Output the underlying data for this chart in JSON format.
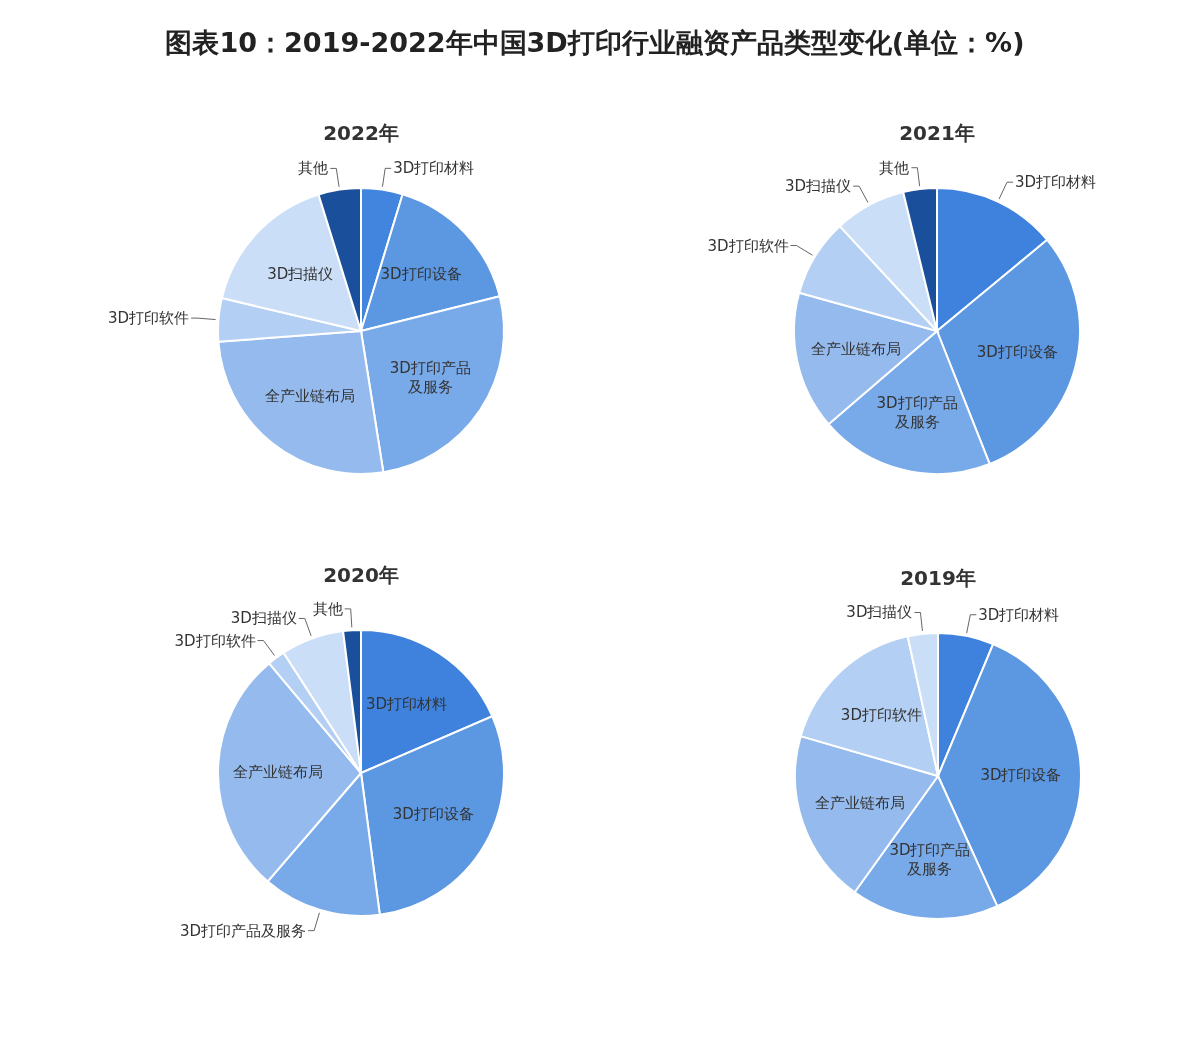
{
  "chart_data": [
    {
      "type": "other",
      "title": "图表10：2019-2022年中国3D打印行业融资产品类型变化(单位：%)"
    },
    {
      "type": "pie",
      "title": "2022年",
      "categories": [
        "3D打印材料",
        "3D打印设备",
        "3D打印产品及服务",
        "全产业链布局",
        "3D打印软件",
        "3D扫描仪",
        "其他"
      ],
      "values": [
        4.7,
        16.4,
        26.4,
        26.3,
        4.9,
        16.5,
        4.8
      ],
      "colors": [
        "#4285de",
        "#5c97e2",
        "#78a9e8",
        "#95bbee",
        "#b3cff3",
        "#cadef7",
        "#1a4f9c"
      ]
    },
    {
      "type": "pie",
      "title": "2021年",
      "categories": [
        "3D打印材料",
        "3D打印设备",
        "3D打印产品及服务",
        "全产业链布局",
        "3D打印软件",
        "3D扫描仪",
        "其他"
      ],
      "values": [
        14,
        30,
        19.7,
        15.6,
        8.8,
        8.1,
        3.8
      ],
      "colors": [
        "#3f82dd",
        "#5c97e2",
        "#78a9e8",
        "#95bbee",
        "#b3cff3",
        "#cadef7",
        "#1a4f9c"
      ]
    },
    {
      "type": "pie",
      "title": "2020年",
      "categories": [
        "3D打印材料",
        "3D打印设备",
        "3D打印产品及服务",
        "全产业链布局",
        "3D打印软件",
        "3D扫描仪",
        "其他"
      ],
      "values": [
        18.5,
        29.4,
        13.4,
        27.6,
        2,
        7.1,
        2
      ],
      "colors": [
        "#3f82dd",
        "#5c97e2",
        "#78a9e8",
        "#95bbee",
        "#b3cff3",
        "#cadef7",
        "#1a4f9c"
      ]
    },
    {
      "type": "pie",
      "title": "2019年",
      "categories": [
        "3D打印材料",
        "3D打印设备",
        "3D打印产品及服务",
        "全产业链布局",
        "3D打印软件",
        "3D扫描仪"
      ],
      "values": [
        6.3,
        36.9,
        16.7,
        19.6,
        17.1,
        3.4
      ],
      "colors": [
        "#3f82dd",
        "#5c97e2",
        "#78a9e8",
        "#95bbee",
        "#b3cff3",
        "#cadef7"
      ]
    }
  ]
}
